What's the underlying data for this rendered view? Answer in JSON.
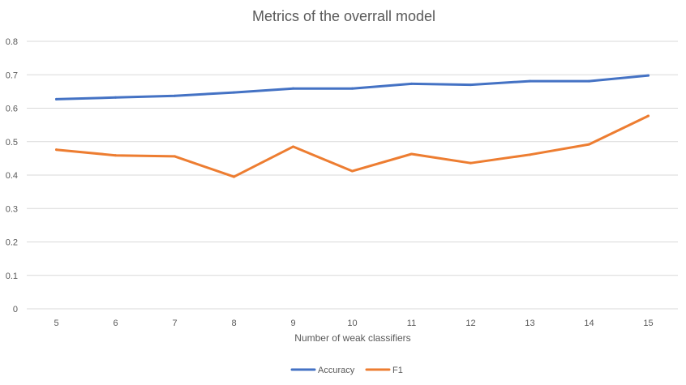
{
  "chart_data": {
    "type": "line",
    "title": "Metrics of the overrall model",
    "xlabel": "Number of weak classifiers",
    "ylabel": "",
    "categories": [
      "5",
      "6",
      "7",
      "8",
      "9",
      "10",
      "11",
      "12",
      "13",
      "14",
      "15"
    ],
    "ylim": [
      0,
      0.8
    ],
    "yticks": [
      "0",
      "0.1",
      "0.2",
      "0.3",
      "0.4",
      "0.5",
      "0.6",
      "0.7",
      "0.8"
    ],
    "grid": true,
    "legend_position": "bottom",
    "series": [
      {
        "name": "Accuracy",
        "color": "#4472c4",
        "values": [
          0.627,
          0.632,
          0.637,
          0.647,
          0.659,
          0.659,
          0.673,
          0.67,
          0.681,
          0.681,
          0.698
        ]
      },
      {
        "name": "F1",
        "color": "#ed7d31",
        "values": [
          0.476,
          0.459,
          0.456,
          0.395,
          0.485,
          0.412,
          0.463,
          0.436,
          0.461,
          0.492,
          0.577
        ]
      }
    ]
  }
}
